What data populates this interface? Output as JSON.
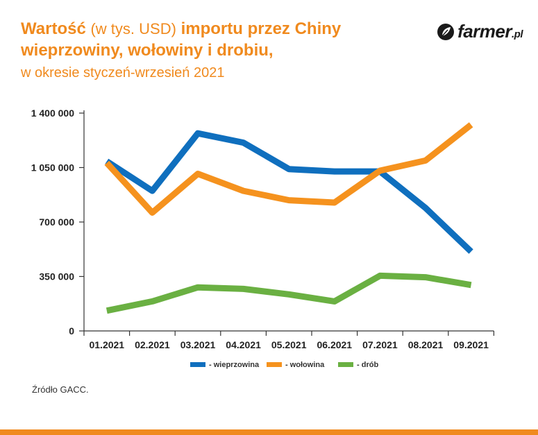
{
  "header": {
    "title_line1_bold_a": "Wartość",
    "title_line1_light": "(w tys. USD)",
    "title_line1_bold_b": "importu przez Chiny",
    "title_line2": "wieprzowiny, wołowiny i drobiu,",
    "title_line3": "w okresie styczeń-wrzesień 2021"
  },
  "logo": {
    "text": "farmer",
    "suffix": ".pl"
  },
  "source": "Źródło GACC.",
  "colors": {
    "accent": "#f08a1e",
    "pork": "#0f6fbe",
    "beef": "#f5921e",
    "poultry": "#6ab042"
  },
  "chart_data": {
    "type": "line",
    "title": "Wartość (w tys. USD) importu przez Chiny wieprzowiny, wołowiny i drobiu, w okresie styczeń-wrzesień 2021",
    "xlabel": "",
    "ylabel": "",
    "categories": [
      "01.2021",
      "02.2021",
      "03.2021",
      "04.2021",
      "05.2021",
      "06.2021",
      "07.2021",
      "08.2021",
      "09.2021"
    ],
    "yticks": [
      0,
      350000,
      700000,
      1050000,
      1400000
    ],
    "ytick_labels": [
      "0",
      "350 000",
      "700 000",
      "1 050 000",
      "1 400 000"
    ],
    "ylim": [
      0,
      1400000
    ],
    "grid": false,
    "legend_position": "bottom",
    "series": [
      {
        "name": "- wieprzowina",
        "color": "#0f6fbe",
        "values": [
          1090000,
          900000,
          1270000,
          1210000,
          1040000,
          1025000,
          1025000,
          790000,
          510000
        ]
      },
      {
        "name": "- wołowina",
        "color": "#f5921e",
        "values": [
          1080000,
          760000,
          1010000,
          900000,
          840000,
          825000,
          1030000,
          1095000,
          1325000
        ]
      },
      {
        "name": "- drób",
        "color": "#6ab042",
        "values": [
          130000,
          190000,
          280000,
          270000,
          235000,
          190000,
          355000,
          345000,
          295000
        ]
      }
    ]
  }
}
